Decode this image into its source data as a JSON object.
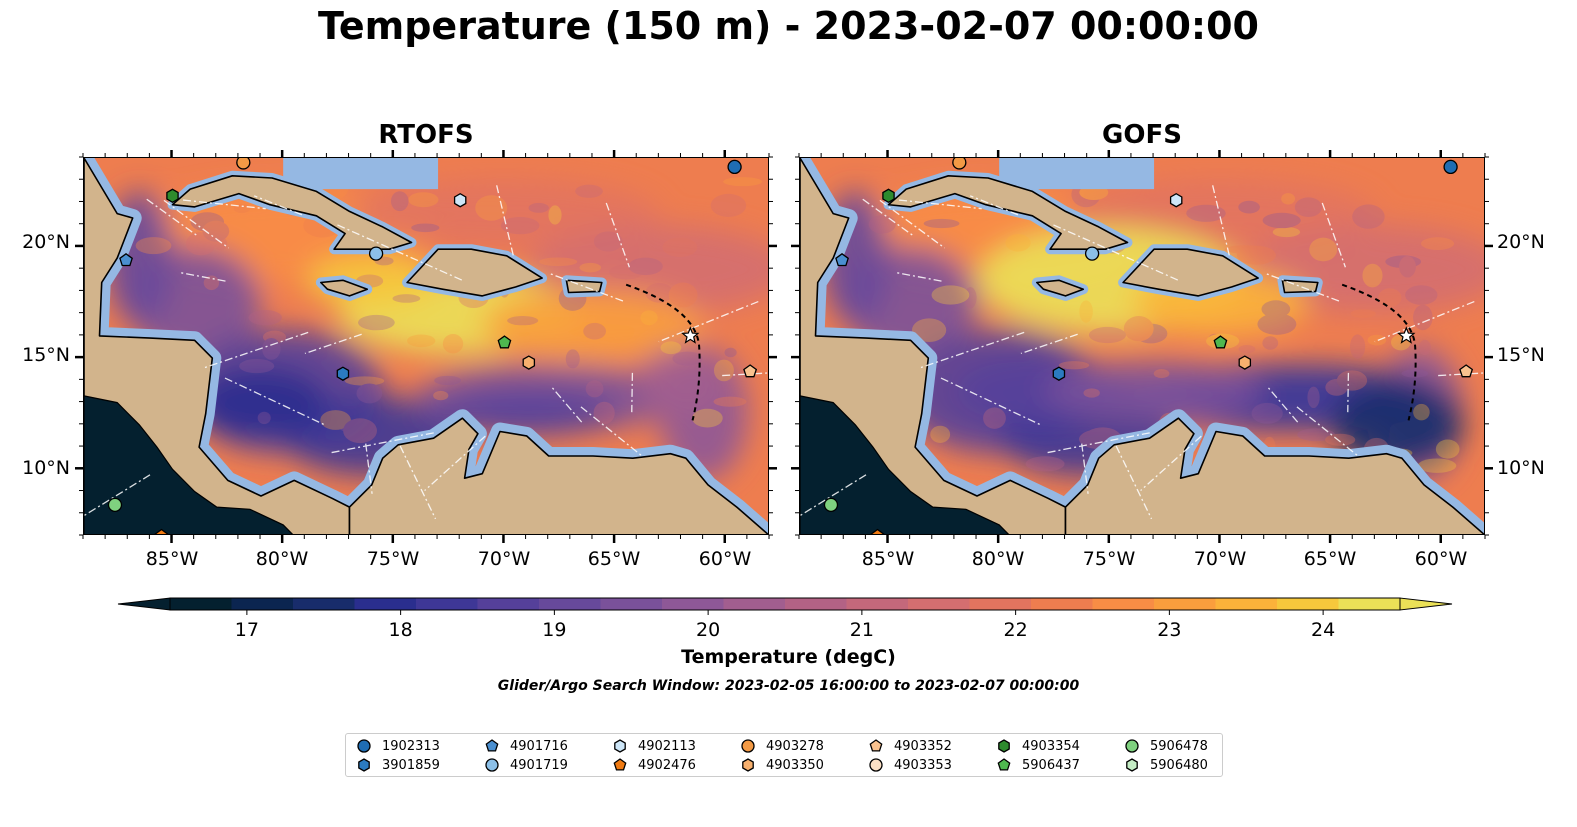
{
  "title": "Temperature (150 m) - 2023-02-07 00:00:00",
  "panels": [
    {
      "name": "rtofs",
      "title": "RTOFS"
    },
    {
      "name": "gofs",
      "title": "GOFS"
    }
  ],
  "map": {
    "lon_range": [
      -89,
      -58
    ],
    "lat_range": [
      7,
      24
    ],
    "lon_ticks": [
      -85,
      -80,
      -75,
      -70,
      -65,
      -60
    ],
    "lon_tick_labels": [
      "85°W",
      "80°W",
      "75°W",
      "70°W",
      "65°W",
      "60°W"
    ],
    "lat_ticks": [
      10,
      15,
      20
    ],
    "lat_tick_labels": [
      "10°N",
      "15°N",
      "20°N"
    ],
    "colors": {
      "land": "#d2b48c",
      "shelf": "#95b8e3",
      "deep_pacific": "#04202f"
    }
  },
  "colorbar": {
    "label": "Temperature (degC)",
    "ticks": [
      "17",
      "18",
      "19",
      "20",
      "21",
      "22",
      "23",
      "24"
    ],
    "tick_values": [
      17,
      18,
      19,
      20,
      21,
      22,
      23,
      24
    ],
    "range": [
      16.5,
      24.5
    ],
    "colors": [
      "#04202f",
      "#0b2550",
      "#182c6b",
      "#2a2e8e",
      "#3e3796",
      "#55409a",
      "#67499b",
      "#7a519a",
      "#8e5897",
      "#a25e8f",
      "#b36285",
      "#c4687b",
      "#d46e70",
      "#e2745f",
      "#ee7d4f",
      "#f88d45",
      "#fa9e3d",
      "#fbb23a",
      "#f6c83c",
      "#ebe157"
    ]
  },
  "search_window": "Glider/Argo Search Window: 2023-02-05 16:00:00 to 2023-02-07 00:00:00",
  "legend": [
    {
      "id": "1902313",
      "shape": "circle",
      "color": "#1f6db3"
    },
    {
      "id": "3901859",
      "shape": "hexagon",
      "color": "#2b7bc0"
    },
    {
      "id": "4901716",
      "shape": "pentagon",
      "color": "#4a8fd0"
    },
    {
      "id": "4901719",
      "shape": "circle",
      "color": "#8cc0e8"
    },
    {
      "id": "4902113",
      "shape": "hexagon",
      "color": "#cde6f8"
    },
    {
      "id": "4902476",
      "shape": "pentagon",
      "color": "#f07a12"
    },
    {
      "id": "4903278",
      "shape": "circle",
      "color": "#f39a45"
    },
    {
      "id": "4903350",
      "shape": "hexagon",
      "color": "#f7b06e"
    },
    {
      "id": "4903352",
      "shape": "pentagon",
      "color": "#f9c28f"
    },
    {
      "id": "4903353",
      "shape": "circle",
      "color": "#fce0c4"
    },
    {
      "id": "4903354",
      "shape": "hexagon",
      "color": "#2e8b2e"
    },
    {
      "id": "5906437",
      "shape": "pentagon",
      "color": "#4fb84f"
    },
    {
      "id": "5906478",
      "shape": "circle",
      "color": "#7fd17f"
    },
    {
      "id": "5906480",
      "shape": "hexagon",
      "color": "#c5edc5"
    }
  ],
  "floats": [
    {
      "id": "1902313",
      "lon": -59.6,
      "lat": 23.6
    },
    {
      "id": "3901859",
      "lon": -77.3,
      "lat": 14.3
    },
    {
      "id": "4901716",
      "lon": -87.1,
      "lat": 19.4
    },
    {
      "id": "4901719",
      "lon": -75.8,
      "lat": 19.7
    },
    {
      "id": "4902113",
      "lon": -72.0,
      "lat": 22.1
    },
    {
      "id": "4902476",
      "lon": -85.5,
      "lat": 7.0
    },
    {
      "id": "4903278",
      "lon": -81.8,
      "lat": 23.8
    },
    {
      "id": "4903350",
      "lon": -68.9,
      "lat": 14.8
    },
    {
      "id": "4903352",
      "lon": -58.9,
      "lat": 14.4
    },
    {
      "id": "4903354",
      "lon": -85.0,
      "lat": 22.3
    },
    {
      "id": "5906437",
      "lon": -70.0,
      "lat": 15.7
    },
    {
      "id": "5906478",
      "lon": -87.6,
      "lat": 8.4
    }
  ]
}
